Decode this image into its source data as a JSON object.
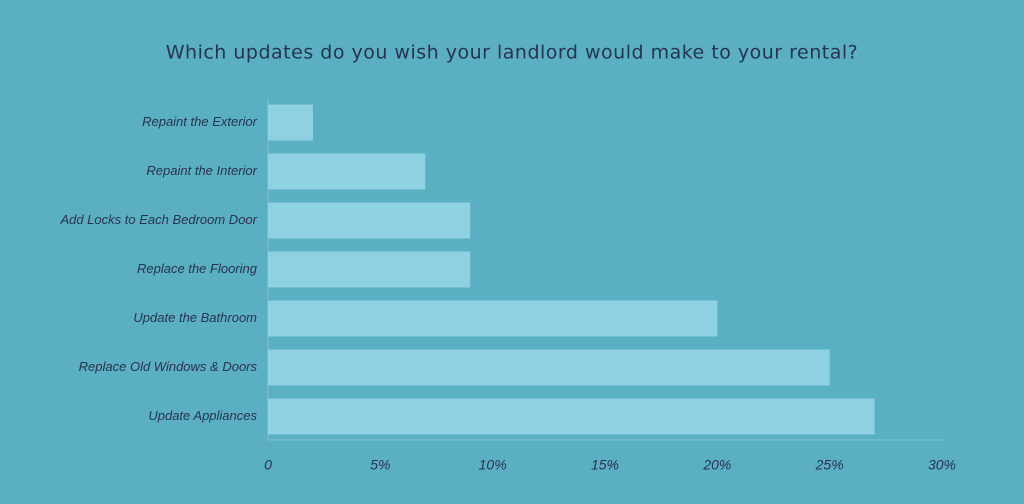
{
  "chart_data": {
    "type": "barh",
    "title": "Which updates do you wish your landlord would make to your rental?",
    "categories": [
      "Repaint the Exterior",
      "Repaint the Interior",
      "Add Locks to Each Bedroom Door",
      "Replace the Flooring",
      "Update the Bathroom",
      "Replace Old Windows & Doors",
      "Update Appliances"
    ],
    "values": [
      2,
      7,
      9,
      9,
      20,
      25,
      27
    ],
    "color": "#8dd1e2",
    "xlim": [
      0,
      30
    ],
    "xticks": [
      0,
      {
        "value": 5,
        "label": "5%"
      },
      {
        "value": 10,
        "label": "10%"
      },
      {
        "value": 15,
        "label": "15%"
      },
      {
        "value": 20,
        "label": "20%"
      },
      {
        "value": 25,
        "label": "25%"
      },
      {
        "value": 30,
        "label": "30%"
      }
    ],
    "grid": false
  }
}
